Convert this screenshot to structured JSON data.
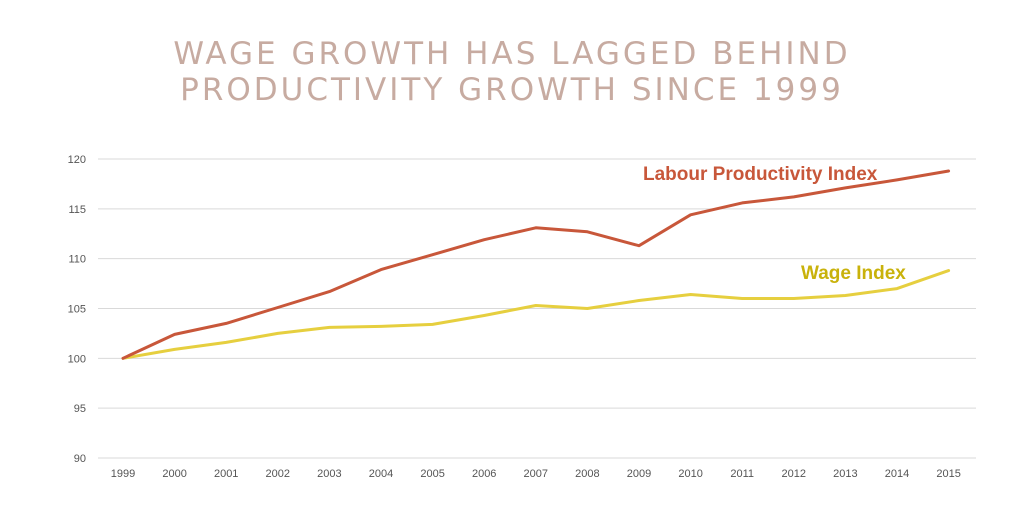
{
  "title_lines": [
    "WAGE GROWTH HAS LAGGED BEHIND",
    "PRODUCTIVITY GROWTH SINCE 1999"
  ],
  "colors": {
    "title": "#c7aba1",
    "productivity": "#c8573a",
    "wage": "#e6cf3f",
    "wage_label": "#c9b20b",
    "grid": "#d9d9d9",
    "tick": "#555555"
  },
  "chart_data": {
    "type": "line",
    "title": "WAGE GROWTH HAS LAGGED BEHIND PRODUCTIVITY GROWTH SINCE 1999",
    "x": [
      "1999",
      "2000",
      "2001",
      "2002",
      "2003",
      "2004",
      "2005",
      "2006",
      "2007",
      "2008",
      "2009",
      "2010",
      "2011",
      "2012",
      "2013",
      "2014",
      "2015"
    ],
    "ylim": [
      90,
      120
    ],
    "yticks": [
      90,
      95,
      100,
      105,
      110,
      115,
      120
    ],
    "grid": true,
    "series": [
      {
        "name": "Labour Productivity Index",
        "color": "#c8573a",
        "values": [
          100,
          102.4,
          103.5,
          105.1,
          106.7,
          108.9,
          110.4,
          111.9,
          113.1,
          112.7,
          111.3,
          114.4,
          115.6,
          116.2,
          117.1,
          117.9,
          118.8
        ]
      },
      {
        "name": "Wage Index",
        "color": "#e6cf3f",
        "values": [
          100,
          100.9,
          101.6,
          102.5,
          103.1,
          103.2,
          103.4,
          104.3,
          105.3,
          105.0,
          105.8,
          106.4,
          106.0,
          106.0,
          106.3,
          107.0,
          108.8
        ]
      }
    ]
  }
}
